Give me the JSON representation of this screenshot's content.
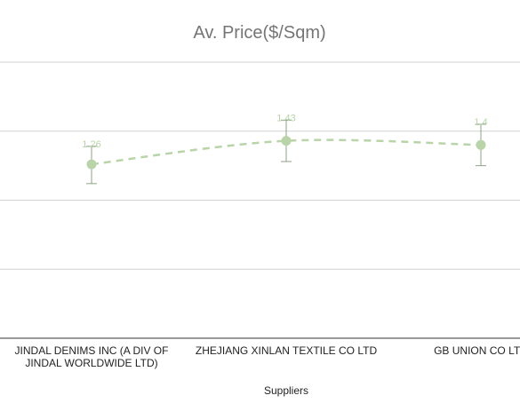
{
  "chart_data": {
    "type": "line",
    "title": "Av. Price($/Sqm)",
    "xlabel": "Suppliers",
    "ylabel": "",
    "categories": [
      [
        "JINDAL DENIMS INC (A DIV OF",
        "JINDAL WORLDWIDE LTD)"
      ],
      [
        "ZHEJIANG XINLAN TEXTILE CO LTD"
      ],
      [
        "GB UNION CO LTD"
      ]
    ],
    "series": [
      {
        "values": [
          1.26,
          1.43,
          1.4
        ],
        "error_low": [
          1.12,
          1.28,
          1.25
        ],
        "error_high": [
          1.39,
          1.58,
          1.55
        ],
        "data_labels": [
          "1.26",
          "1.43",
          "1.4"
        ]
      }
    ],
    "ylim": [
      0,
      2.0
    ],
    "grid": true,
    "legend": "none",
    "line_style": "dashed-smooth",
    "colors": {
      "point": "#b8d4a8",
      "line": "#b8d4a8",
      "error_bar": "#8fa287",
      "label": "#b8d4a8",
      "grid": "#d0d0d0",
      "axis": "#333333",
      "title": "#757575"
    }
  }
}
